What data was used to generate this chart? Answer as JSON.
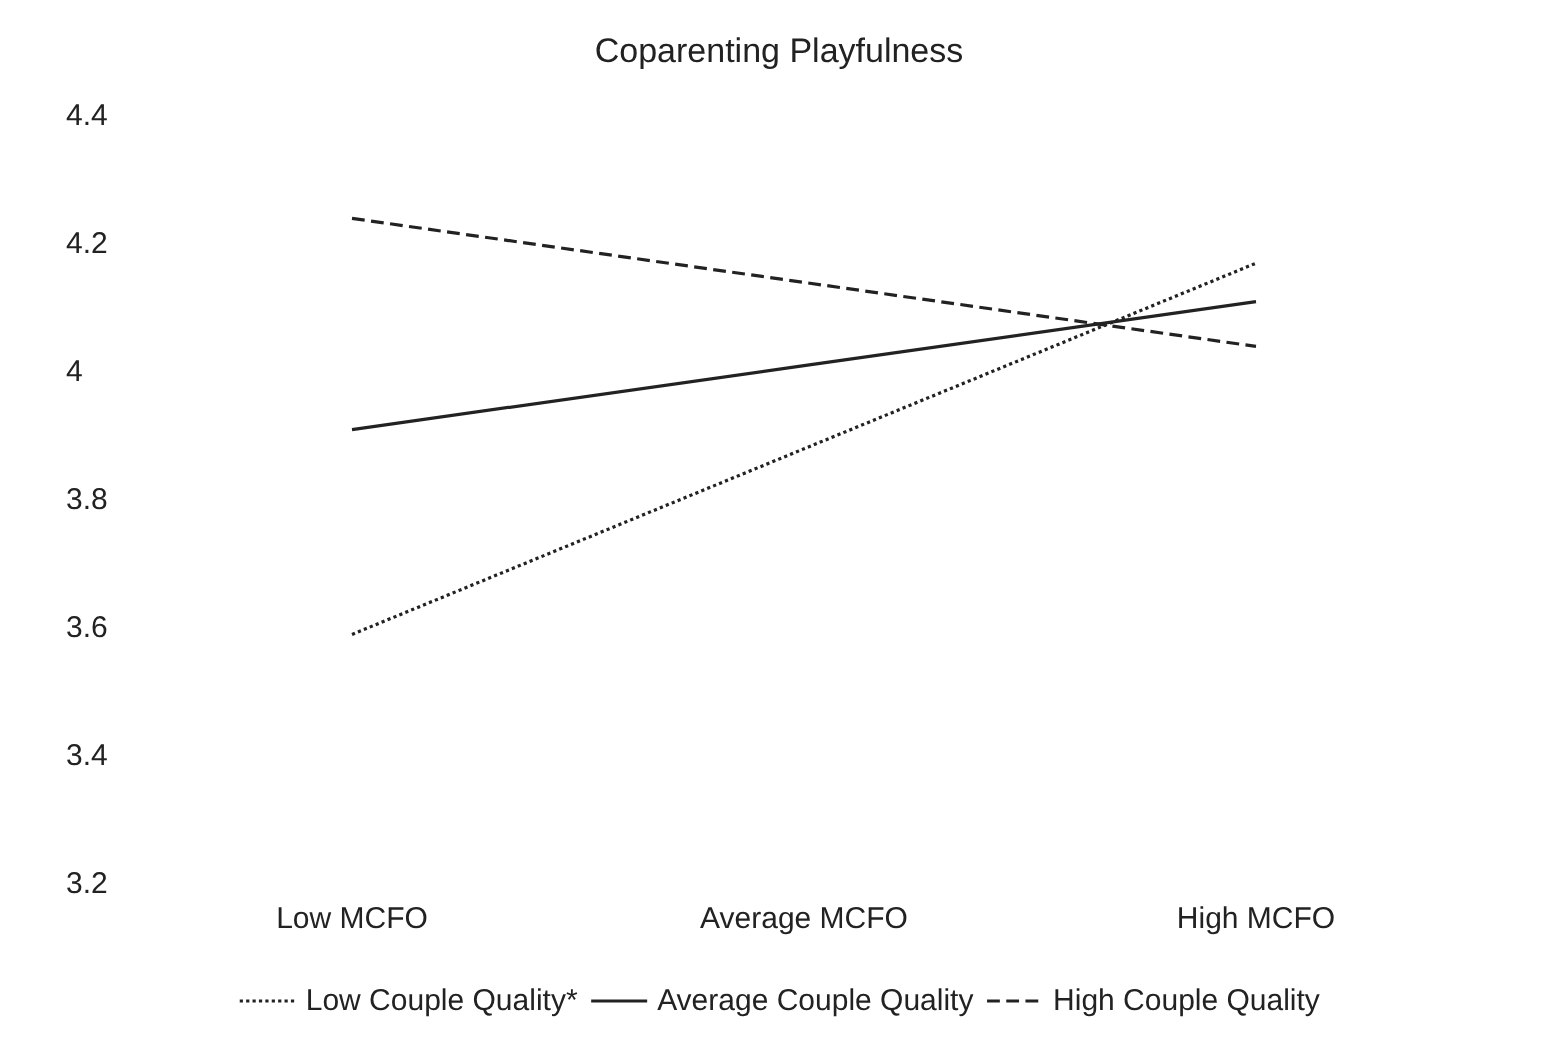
{
  "chart_data": {
    "type": "line",
    "title": "Coparenting Playfulness",
    "categories": [
      "Low MCFO",
      "Average MCFO",
      "High MCFO"
    ],
    "series": [
      {
        "name": "Low Couple Quality*",
        "color": "#222222",
        "line_style": "dotted",
        "values": [
          3.59,
          3.88,
          4.17
        ]
      },
      {
        "name": "Average Couple Quality",
        "color": "#222222",
        "line_style": "solid",
        "values": [
          3.91,
          4.01,
          4.11
        ]
      },
      {
        "name": "High Couple Quality",
        "color": "#222222",
        "line_style": "dashed",
        "values": [
          4.24,
          4.14,
          4.04
        ]
      }
    ],
    "ylim": [
      3.2,
      4.4
    ],
    "yticks": [
      3.2,
      3.4,
      3.6,
      3.8,
      4,
      4.2,
      4.4
    ],
    "grid": false,
    "legend": "bottom",
    "marker": "none"
  }
}
